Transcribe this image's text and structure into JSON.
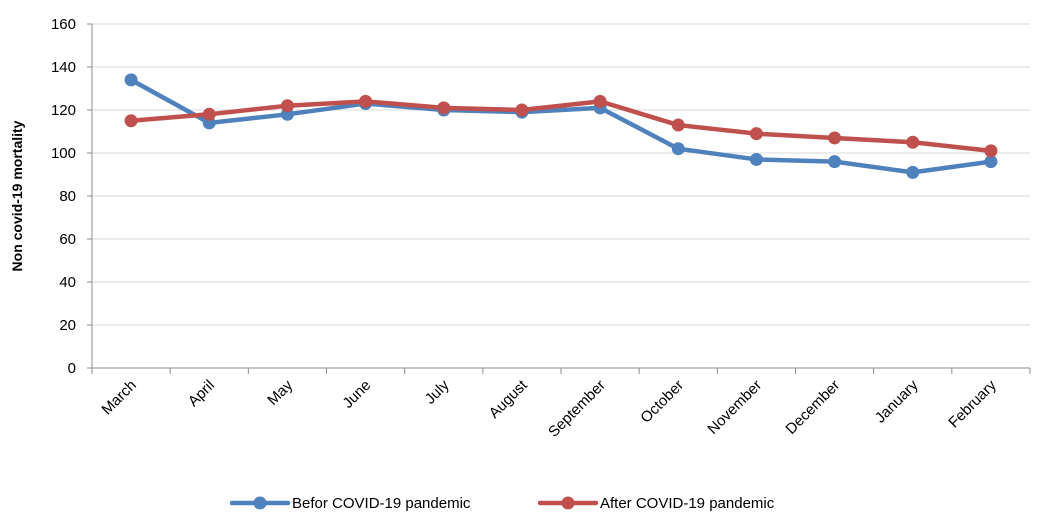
{
  "chart_data": {
    "type": "line",
    "title": "",
    "xlabel": "",
    "ylabel": "Non covid-19 mortality",
    "categories": [
      "March",
      "April",
      "May",
      "June",
      "July",
      "August",
      "September",
      "October",
      "November",
      "December",
      "January",
      "February"
    ],
    "series": [
      {
        "name": "Befor COVID-19 pandemic",
        "color": "#4F81BD",
        "values": [
          134,
          114,
          118,
          123,
          120,
          119,
          121,
          102,
          97,
          96,
          91,
          96
        ]
      },
      {
        "name": "After COVID-19 pandemic",
        "color": "#C0504D",
        "values": [
          115,
          118,
          122,
          124,
          121,
          120,
          124,
          113,
          109,
          107,
          105,
          101
        ]
      }
    ],
    "ylim": [
      0,
      160
    ],
    "yticks": [
      0,
      20,
      40,
      60,
      80,
      100,
      120,
      140,
      160
    ],
    "grid": true,
    "legend_position": "bottom"
  }
}
